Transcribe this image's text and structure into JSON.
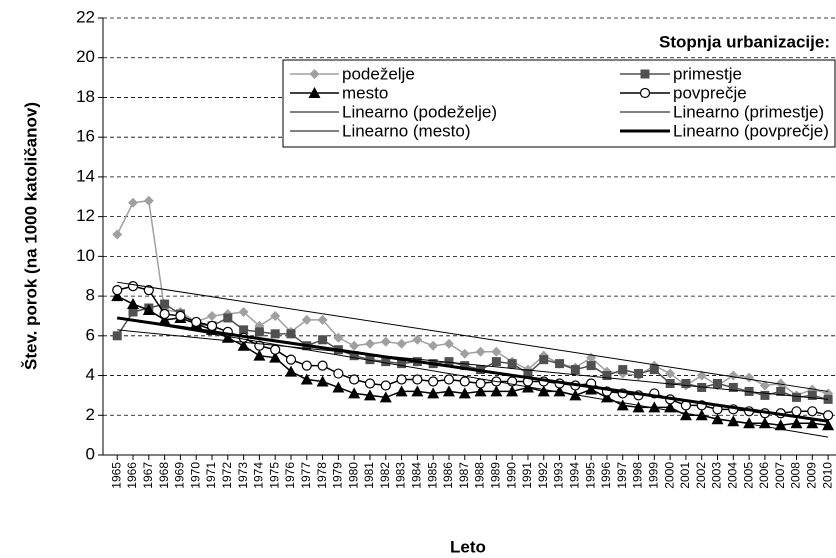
{
  "chart_data": {
    "type": "line",
    "xlabel": "Leto",
    "ylabel": "Štev. porok (na 1000 katoličanov)",
    "legend_title": "Stopnja urbanizacije:",
    "legend": "upper right",
    "grid": true,
    "x": [
      1965,
      1966,
      1967,
      1968,
      1969,
      1970,
      1971,
      1972,
      1973,
      1974,
      1975,
      1976,
      1977,
      1978,
      1979,
      1980,
      1981,
      1982,
      1983,
      1984,
      1985,
      1986,
      1987,
      1988,
      1989,
      1990,
      1991,
      1992,
      1993,
      1994,
      1995,
      1996,
      1997,
      1998,
      1999,
      2000,
      2001,
      2002,
      2003,
      2004,
      2005,
      2006,
      2007,
      2008,
      2009,
      2010
    ],
    "xlim": [
      1964.1,
      2010.5
    ],
    "xticks": [
      1965,
      1966,
      1967,
      1968,
      1969,
      1970,
      1971,
      1972,
      1973,
      1974,
      1975,
      1976,
      1977,
      1978,
      1979,
      1980,
      1981,
      1982,
      1983,
      1984,
      1985,
      1986,
      1987,
      1988,
      1989,
      1990,
      1991,
      1992,
      1993,
      1994,
      1995,
      1996,
      1997,
      1998,
      1999,
      2000,
      2001,
      2002,
      2003,
      2004,
      2005,
      2006,
      2007,
      2008,
      2009,
      2010
    ],
    "ylim": [
      0,
      22
    ],
    "yticks": [
      0,
      2,
      4,
      6,
      8,
      10,
      12,
      14,
      16,
      18,
      20,
      22
    ],
    "series": [
      {
        "name": "podeželje",
        "color": "#a0a0a0",
        "marker": "diamond",
        "line_width": 1.5,
        "values": [
          11.1,
          12.7,
          12.8,
          7.3,
          7.2,
          6.7,
          7.0,
          7.1,
          7.2,
          6.5,
          7.0,
          6.2,
          6.8,
          6.8,
          5.9,
          5.5,
          5.6,
          5.7,
          5.6,
          5.8,
          5.5,
          5.6,
          5.1,
          5.2,
          5.2,
          4.7,
          4.3,
          5.0,
          4.6,
          4.4,
          4.9,
          4.2,
          4.1,
          4.0,
          4.5,
          4.1,
          3.5,
          4.0,
          3.5,
          4.0,
          3.9,
          3.5,
          3.6,
          3.0,
          3.3,
          3.1
        ]
      },
      {
        "name": "primestje",
        "color": "#505050",
        "marker": "square",
        "line_width": 1.5,
        "values": [
          6.0,
          7.2,
          7.4,
          7.6,
          7.1,
          6.6,
          6.5,
          6.9,
          6.3,
          6.2,
          6.1,
          6.1,
          5.5,
          5.8,
          5.3,
          5.0,
          4.8,
          4.7,
          4.6,
          4.7,
          4.6,
          4.7,
          4.5,
          4.3,
          4.7,
          4.6,
          4.1,
          4.8,
          4.6,
          4.3,
          4.5,
          4.0,
          4.3,
          4.1,
          4.3,
          3.6,
          3.6,
          3.4,
          3.6,
          3.4,
          3.2,
          3.0,
          3.2,
          2.9,
          3.0,
          2.8
        ]
      },
      {
        "name": "mesto",
        "color": "#000000",
        "marker": "triangle",
        "line_width": 1.5,
        "values": [
          8.0,
          7.6,
          7.3,
          6.8,
          6.9,
          6.6,
          6.3,
          5.9,
          5.5,
          5.0,
          4.9,
          4.2,
          3.8,
          3.7,
          3.4,
          3.1,
          3.0,
          2.9,
          3.2,
          3.2,
          3.1,
          3.2,
          3.1,
          3.2,
          3.2,
          3.2,
          3.4,
          3.2,
          3.2,
          3.0,
          3.3,
          2.9,
          2.5,
          2.4,
          2.4,
          2.4,
          2.0,
          2.0,
          1.8,
          1.7,
          1.6,
          1.6,
          1.5,
          1.6,
          1.6,
          1.5
        ]
      },
      {
        "name": "povprečje",
        "color": "#000000",
        "marker": "circle",
        "line_width": 1.5,
        "values": [
          8.3,
          8.5,
          8.3,
          7.1,
          7.0,
          6.7,
          6.5,
          6.2,
          5.9,
          5.5,
          5.3,
          4.8,
          4.5,
          4.5,
          4.1,
          3.8,
          3.6,
          3.5,
          3.8,
          3.8,
          3.7,
          3.8,
          3.7,
          3.6,
          3.7,
          3.7,
          3.7,
          3.7,
          3.6,
          3.5,
          3.6,
          3.2,
          3.1,
          3.0,
          3.1,
          2.8,
          2.5,
          2.5,
          2.3,
          2.3,
          2.2,
          2.1,
          2.1,
          2.2,
          2.2,
          2.0
        ]
      },
      {
        "name": "Linearno (podeželje)",
        "color": "#000000",
        "marker": "none",
        "line_width": 1,
        "x": [
          1965,
          2010
        ],
        "values": [
          8.7,
          3.2
        ]
      },
      {
        "name": "Linearno (primestje)",
        "color": "#000000",
        "marker": "none",
        "line_width": 1,
        "x": [
          1965,
          2010
        ],
        "values": [
          6.3,
          2.8
        ]
      },
      {
        "name": "Linearno (mesto)",
        "color": "#000000",
        "marker": "none",
        "line_width": 1,
        "x": [
          1965,
          2010
        ],
        "values": [
          6.9,
          0.9
        ]
      },
      {
        "name": "Linearno (povprečje)",
        "color": "#000000",
        "marker": "none",
        "line_width": 3,
        "x": [
          1965,
          2010
        ],
        "values": [
          6.9,
          1.7
        ]
      }
    ]
  }
}
